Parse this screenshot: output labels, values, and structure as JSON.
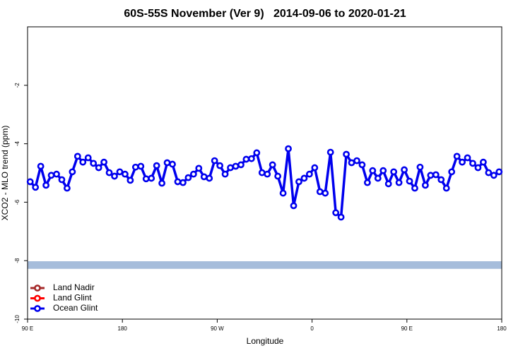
{
  "chart_data": {
    "type": "line",
    "title": "60S-55S November (Ver 9)   2014-09-06 to 2020-01-21",
    "xlabel": "Longitude",
    "ylabel": "XCO2 - MLO trend (ppm)",
    "xlim": [
      90,
      540
    ],
    "xticks": [
      {
        "value": 90,
        "label": "90 E"
      },
      180,
      {
        "value": 270,
        "label": "90 W"
      },
      {
        "value": 360,
        "label": "0"
      },
      {
        "value": 450,
        "label": "90 E"
      },
      {
        "value": 540,
        "label": "180"
      }
    ],
    "ylim": [
      -10,
      0
    ],
    "yticks": [
      -10,
      -8,
      -6,
      -4,
      -2
    ],
    "legend": "bottom-left",
    "band": {
      "ylim": [
        -8.28,
        -8.02
      ],
      "color": "#a6bddb"
    },
    "x": [
      92.5,
      97.5,
      102.5,
      107.5,
      112.5,
      117.5,
      122.5,
      127.5,
      132.5,
      137.5,
      142.5,
      147.5,
      152.5,
      157.5,
      162.5,
      167.5,
      172.5,
      177.5,
      182.5,
      187.5,
      192.5,
      197.5,
      202.5,
      207.5,
      212.5,
      217.5,
      222.5,
      227.5,
      232.5,
      237.5,
      242.5,
      247.5,
      252.5,
      257.5,
      262.5,
      267.5,
      272.5,
      277.5,
      282.5,
      287.5,
      292.5,
      297.5,
      302.5,
      307.5,
      312.5,
      317.5,
      322.5,
      327.5,
      332.5,
      337.5,
      342.5,
      347.5,
      352.5,
      357.5,
      362.5,
      367.5,
      372.5,
      377.5,
      382.5,
      387.5,
      392.5,
      397.5,
      402.5,
      407.5,
      412.5,
      417.5,
      422.5,
      427.5,
      432.5,
      437.5,
      442.5,
      447.5,
      452.5,
      457.5,
      462.5,
      467.5,
      472.5,
      477.5,
      482.5,
      487.5,
      492.5,
      497.5,
      502.5,
      507.5,
      512.5,
      517.5,
      522.5,
      527.5,
      532.5,
      537.5
    ],
    "series": [
      {
        "name": "Land Nadir",
        "color": "#a52a2a",
        "values": [
          null,
          null,
          null,
          null,
          null,
          null,
          null,
          null,
          null,
          null,
          null,
          null,
          null,
          null,
          null,
          null,
          null,
          null,
          null,
          null,
          null,
          null,
          null,
          null,
          null,
          null,
          null,
          null,
          null,
          null,
          null,
          null,
          null,
          null,
          null,
          null,
          null,
          null,
          null,
          null,
          null,
          null,
          null,
          null,
          null,
          null,
          null,
          null,
          null,
          null,
          null,
          null,
          null,
          null,
          null,
          null,
          null,
          null,
          null,
          null,
          null,
          null,
          null,
          null,
          null,
          null,
          null,
          null,
          null,
          null,
          null,
          null,
          null,
          null,
          null,
          null,
          null,
          null,
          null,
          null,
          null,
          null,
          null,
          null,
          null,
          null,
          null,
          null,
          null,
          null
        ]
      },
      {
        "name": "Land Glint",
        "color": "#ff0000",
        "values": [
          null,
          null,
          null,
          null,
          null,
          null,
          null,
          null,
          null,
          null,
          null,
          null,
          null,
          null,
          null,
          null,
          null,
          null,
          null,
          null,
          null,
          null,
          null,
          null,
          null,
          null,
          null,
          null,
          null,
          null,
          null,
          null,
          null,
          null,
          null,
          null,
          null,
          null,
          null,
          null,
          null,
          null,
          null,
          null,
          null,
          null,
          null,
          null,
          null,
          null,
          null,
          null,
          null,
          null,
          null,
          null,
          null,
          null,
          null,
          null,
          null,
          null,
          null,
          null,
          null,
          null,
          null,
          null,
          null,
          null,
          null,
          null,
          null,
          null,
          null,
          null,
          null,
          null,
          null,
          null,
          null,
          null,
          null,
          null,
          null,
          null,
          null,
          null,
          null,
          null
        ]
      },
      {
        "name": "Ocean Glint",
        "color": "#0000ee",
        "values": [
          -5.3,
          -5.49,
          -4.77,
          -5.42,
          -5.08,
          -5.04,
          -5.23,
          -5.52,
          -4.96,
          -4.43,
          -4.63,
          -4.48,
          -4.67,
          -4.82,
          -4.63,
          -4.99,
          -5.11,
          -4.96,
          -5.04,
          -5.25,
          -4.8,
          -4.77,
          -5.2,
          -5.18,
          -4.75,
          -5.35,
          -4.65,
          -4.7,
          -5.3,
          -5.33,
          -5.16,
          -5.04,
          -4.84,
          -5.13,
          -5.18,
          -4.58,
          -4.75,
          -5.04,
          -4.82,
          -4.77,
          -4.72,
          -4.53,
          -4.51,
          -4.31,
          -4.99,
          -5.04,
          -4.72,
          -5.11,
          -5.69,
          -4.17,
          -6.12,
          -5.3,
          -5.18,
          -5.04,
          -4.82,
          -5.64,
          -5.69,
          -4.29,
          -6.36,
          -6.51,
          -4.36,
          -4.65,
          -4.58,
          -4.72,
          -5.33,
          -4.92,
          -5.18,
          -4.92,
          -5.37,
          -4.96,
          -5.33,
          -4.89,
          -5.28,
          -5.52,
          -4.8,
          -5.42,
          -5.08,
          -5.06,
          -5.23,
          -5.52,
          -4.96,
          -4.43,
          -4.63,
          -4.48,
          -4.67,
          -4.82,
          -4.63,
          -4.99,
          -5.08,
          -4.96
        ]
      }
    ]
  }
}
